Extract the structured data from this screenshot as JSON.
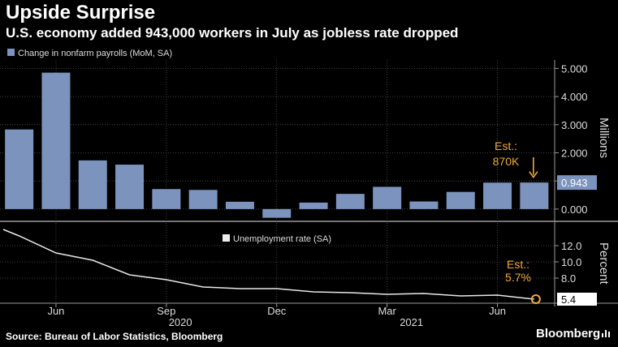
{
  "header": {
    "title": "Upside Surprise",
    "subtitle": "U.S. economy added 943,000 workers in July as jobless rate dropped"
  },
  "footer": {
    "source": "Source: Bureau of Labor Statistics, Bloomberg",
    "brand": "Bloomberg"
  },
  "colors": {
    "background": "#000000",
    "bar": "#7b93bd",
    "line": "#e8e8e8",
    "annotation": "#f0a83c",
    "grid": "#555555"
  },
  "chart_data": [
    {
      "type": "bar",
      "legend": "Change in nonfarm payrolls (MoM, SA)",
      "ylabel": "Millions",
      "ylim": [
        -0.35,
        5.3
      ],
      "yticks": [
        "5.000",
        "4.000",
        "3.000",
        "2.000",
        "1.000",
        "0.000"
      ],
      "ytick_values": [
        5,
        4,
        3,
        2,
        1,
        0
      ],
      "categories": [
        "2020-05",
        "2020-06",
        "2020-07",
        "2020-08",
        "2020-09",
        "2020-10",
        "2020-11",
        "2020-12",
        "2021-01",
        "2021-02",
        "2021-03",
        "2021-04",
        "2021-05",
        "2021-06",
        "2021-07"
      ],
      "values": [
        2.83,
        4.85,
        1.73,
        1.58,
        0.71,
        0.68,
        0.26,
        -0.31,
        0.23,
        0.54,
        0.79,
        0.27,
        0.61,
        0.94,
        0.943
      ],
      "last_value_label": "0.943",
      "annotation": {
        "line1": "Est.:",
        "line2": "870K",
        "value": 0.87
      }
    },
    {
      "type": "line",
      "legend": "Unemployment rate (SA)",
      "ylabel": "Percent",
      "ylim": [
        5.0,
        14.2
      ],
      "yticks": [
        "12.0",
        "10.0",
        "8.0"
      ],
      "ytick_values": [
        12,
        10,
        8
      ],
      "x": [
        "2020-04",
        "2020-05",
        "2020-06",
        "2020-07",
        "2020-08",
        "2020-09",
        "2020-10",
        "2020-11",
        "2020-12",
        "2021-01",
        "2021-02",
        "2021-03",
        "2021-04",
        "2021-05",
        "2021-06",
        "2021-07"
      ],
      "values": [
        14.0,
        13.2,
        11.1,
        10.2,
        8.4,
        7.8,
        6.9,
        6.7,
        6.7,
        6.3,
        6.2,
        6.0,
        6.1,
        5.8,
        5.9,
        5.4
      ],
      "last_value_label": "5.4",
      "annotation": {
        "line1": "Est.:",
        "line2": "5.7%",
        "value": 5.7
      }
    }
  ],
  "xaxis": {
    "month_labels": [
      "Jun",
      "Sep",
      "Dec",
      "Mar",
      "Jun"
    ],
    "year_labels": [
      "2020",
      "2021"
    ]
  }
}
